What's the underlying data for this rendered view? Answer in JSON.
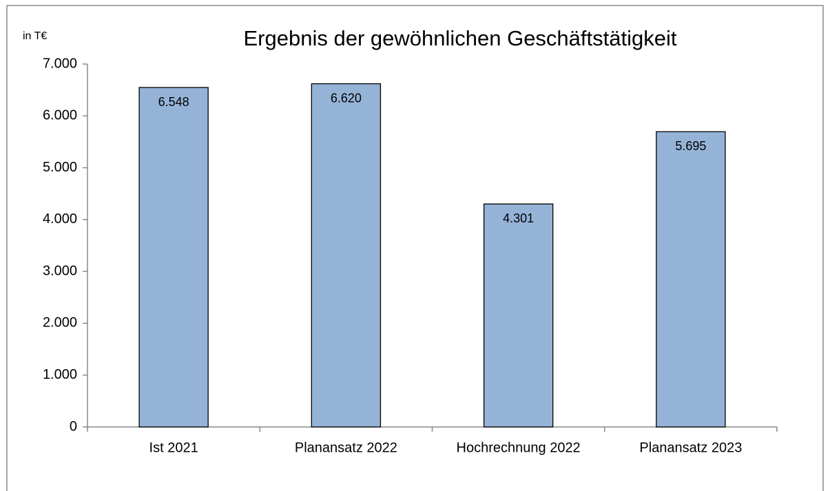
{
  "chart_data": {
    "type": "bar",
    "title": "Ergebnis der gewöhnlichen Geschäftstätigkeit",
    "y_label": "in T€",
    "categories": [
      "Ist 2021",
      "Planansatz 2022",
      "Hochrechnung 2022",
      "Planansatz 2023"
    ],
    "values": [
      6548,
      6620,
      4301,
      5695
    ],
    "value_labels": [
      "6.548",
      "6.620",
      "4.301",
      "5.695"
    ],
    "color": "#95b3d7",
    "ylim": [
      0,
      7000
    ],
    "yticks": [
      0,
      {
        "value": 1000,
        "label": "1.000"
      },
      {
        "value": 2000,
        "label": "2.000"
      },
      {
        "value": 3000,
        "label": "3.000"
      },
      {
        "value": 4000,
        "label": "4.000"
      },
      {
        "value": 5000,
        "label": "5.000"
      },
      {
        "value": 6000,
        "label": "6.000"
      },
      {
        "value": 7000,
        "label": "7.000"
      }
    ],
    "grid": false
  }
}
